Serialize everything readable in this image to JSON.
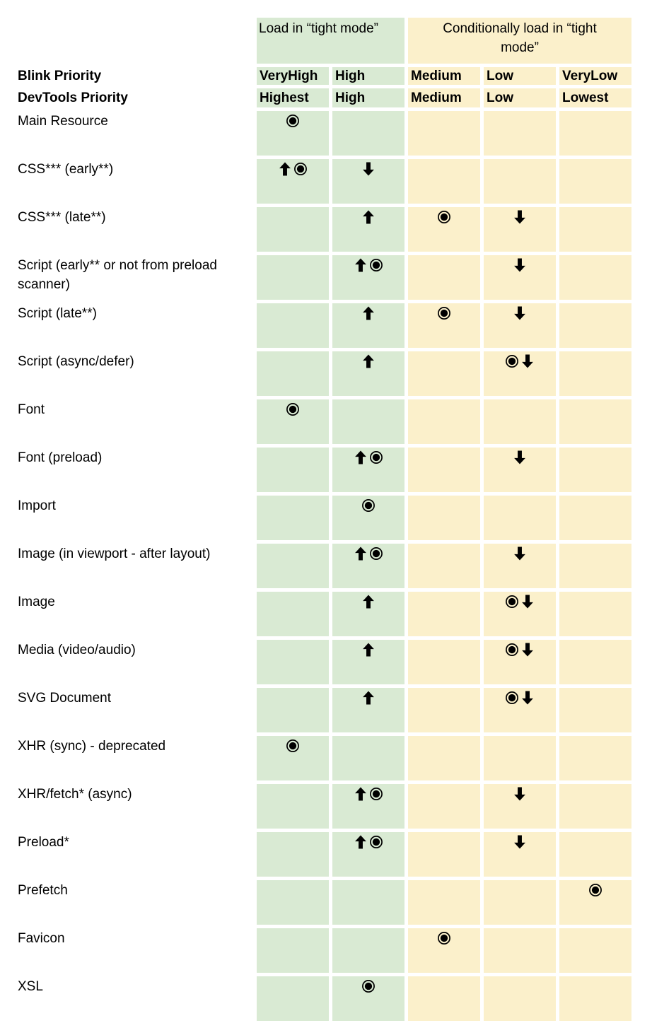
{
  "colors": {
    "green": "#d9ead3",
    "yellow": "#fbf0cb",
    "symbol": "#000000",
    "text": "#000000",
    "background": "#ffffff"
  },
  "chart_data": {
    "type": "table",
    "title": "",
    "column_groups": [
      {
        "label": "Load in “tight mode”",
        "span": 2,
        "zone": "green"
      },
      {
        "label": "Conditionally load in “tight mode”",
        "span": 3,
        "zone": "yellow"
      }
    ],
    "column_zone": [
      "green",
      "green",
      "yellow",
      "yellow",
      "yellow"
    ],
    "header_rows": [
      {
        "label": "Blink Priority",
        "values": [
          "VeryHigh",
          "High",
          "Medium",
          "Low",
          "VeryLow"
        ]
      },
      {
        "label": "DevTools Priority",
        "values": [
          "Highest",
          "High",
          "Medium",
          "Low",
          "Lowest"
        ]
      }
    ],
    "symbol_key": {
      "target": "◉",
      "up": "⬆",
      "down": "⬇"
    },
    "rows": [
      {
        "label": "Main Resource",
        "cells": [
          [
            "target"
          ],
          [],
          [],
          [],
          []
        ]
      },
      {
        "label": "CSS*** (early**)",
        "cells": [
          [
            "up",
            "target"
          ],
          [
            "down"
          ],
          [],
          [],
          []
        ]
      },
      {
        "label": "CSS*** (late**)",
        "cells": [
          [],
          [
            "up"
          ],
          [
            "target"
          ],
          [
            "down"
          ],
          []
        ]
      },
      {
        "label": "Script (early** or not from preload scanner)",
        "cells": [
          [],
          [
            "up",
            "target"
          ],
          [],
          [
            "down"
          ],
          []
        ]
      },
      {
        "label": "Script (late**)",
        "cells": [
          [],
          [
            "up"
          ],
          [
            "target"
          ],
          [
            "down"
          ],
          []
        ]
      },
      {
        "label": "Script (async/defer)",
        "cells": [
          [],
          [
            "up"
          ],
          [],
          [
            "target",
            "down"
          ],
          []
        ]
      },
      {
        "label": "Font",
        "cells": [
          [
            "target"
          ],
          [],
          [],
          [],
          []
        ]
      },
      {
        "label": "Font (preload)",
        "cells": [
          [],
          [
            "up",
            "target"
          ],
          [],
          [
            "down"
          ],
          []
        ]
      },
      {
        "label": "Import",
        "cells": [
          [],
          [
            "target"
          ],
          [],
          [],
          []
        ]
      },
      {
        "label": "Image (in viewport - after layout)",
        "cells": [
          [],
          [
            "up",
            "target"
          ],
          [],
          [
            "down"
          ],
          []
        ]
      },
      {
        "label": "Image",
        "cells": [
          [],
          [
            "up"
          ],
          [],
          [
            "target",
            "down"
          ],
          []
        ]
      },
      {
        "label": "Media (video/audio)",
        "cells": [
          [],
          [
            "up"
          ],
          [],
          [
            "target",
            "down"
          ],
          []
        ]
      },
      {
        "label": "SVG Document",
        "cells": [
          [],
          [
            "up"
          ],
          [],
          [
            "target",
            "down"
          ],
          []
        ]
      },
      {
        "label": "XHR (sync) - deprecated",
        "cells": [
          [
            "target"
          ],
          [],
          [],
          [],
          []
        ]
      },
      {
        "label": "XHR/fetch* (async)",
        "cells": [
          [],
          [
            "up",
            "target"
          ],
          [],
          [
            "down"
          ],
          []
        ]
      },
      {
        "label": "Preload*",
        "cells": [
          [],
          [
            "up",
            "target"
          ],
          [],
          [
            "down"
          ],
          []
        ]
      },
      {
        "label": "Prefetch",
        "cells": [
          [],
          [],
          [],
          [],
          [
            "target"
          ]
        ]
      },
      {
        "label": "Favicon",
        "cells": [
          [],
          [],
          [
            "target"
          ],
          [],
          []
        ]
      },
      {
        "label": "XSL",
        "cells": [
          [],
          [
            "target"
          ],
          [],
          [],
          []
        ]
      }
    ]
  }
}
